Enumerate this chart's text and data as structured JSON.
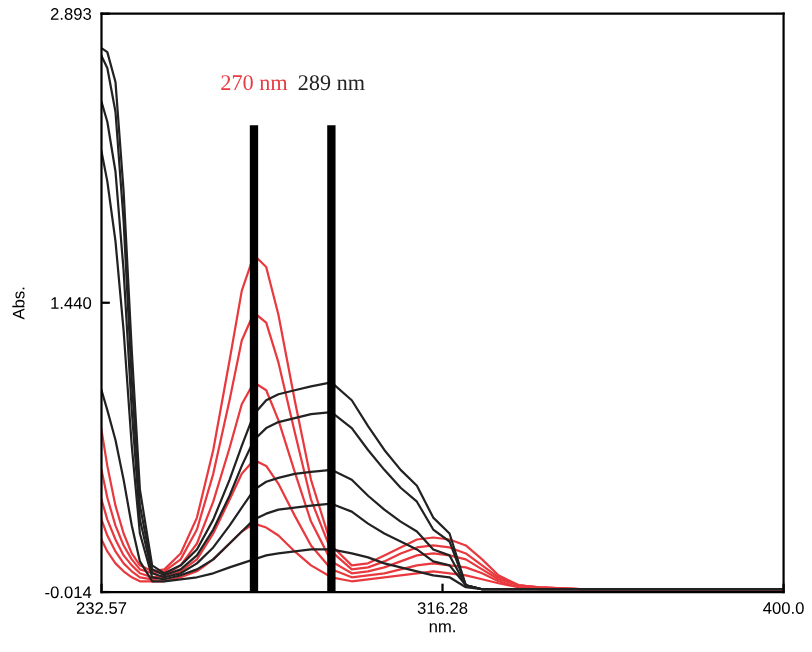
{
  "chart_data": {
    "type": "line",
    "xlabel": "nm.",
    "ylabel": "Abs.",
    "x": [
      232.57,
      234,
      236,
      238,
      240,
      242,
      245,
      248,
      252,
      256,
      260,
      264,
      267,
      270,
      273,
      276,
      280,
      284,
      289,
      294,
      298,
      302,
      306,
      310,
      314,
      318,
      322,
      326,
      330,
      335,
      340,
      350,
      370,
      400
    ],
    "xlim": [
      232.57,
      400.0
    ],
    "ylim": [
      -0.014,
      2.893
    ],
    "xticks": [
      232.57,
      {
        "value": 316.28,
        "label": "316.28"
      },
      {
        "value": 400.0,
        "label": "400.0"
      }
    ],
    "yticks": [
      -0.014,
      {
        "value": 1.44,
        "label": "1.440"
      },
      2.893
    ],
    "grid": false,
    "marker": "none",
    "line_style": "solid",
    "series": [
      {
        "color": "#e8393f",
        "values": [
          0.8,
          0.62,
          0.42,
          0.28,
          0.18,
          0.12,
          0.09,
          0.1,
          0.18,
          0.36,
          0.7,
          1.15,
          1.5,
          1.68,
          1.62,
          1.38,
          0.95,
          0.55,
          0.22,
          0.12,
          0.13,
          0.17,
          0.21,
          0.25,
          0.26,
          0.25,
          0.22,
          0.15,
          0.07,
          0.02,
          0.01,
          0.0,
          0.0,
          0.0
        ]
      },
      {
        "color": "#e8393f",
        "values": [
          0.6,
          0.46,
          0.32,
          0.22,
          0.15,
          0.1,
          0.08,
          0.09,
          0.15,
          0.3,
          0.58,
          0.95,
          1.25,
          1.39,
          1.34,
          1.14,
          0.79,
          0.45,
          0.19,
          0.1,
          0.11,
          0.14,
          0.18,
          0.21,
          0.22,
          0.21,
          0.18,
          0.12,
          0.06,
          0.02,
          0.01,
          0.0,
          0.0,
          0.0
        ]
      },
      {
        "color": "#e8393f",
        "values": [
          0.45,
          0.35,
          0.25,
          0.17,
          0.12,
          0.08,
          0.06,
          0.07,
          0.12,
          0.23,
          0.44,
          0.71,
          0.93,
          1.04,
          1.0,
          0.85,
          0.59,
          0.34,
          0.14,
          0.08,
          0.09,
          0.11,
          0.14,
          0.17,
          0.18,
          0.17,
          0.15,
          0.1,
          0.05,
          0.02,
          0.01,
          0.0,
          0.0,
          0.0
        ]
      },
      {
        "color": "#e8393f",
        "values": [
          0.35,
          0.27,
          0.19,
          0.13,
          0.09,
          0.06,
          0.05,
          0.06,
          0.09,
          0.15,
          0.28,
          0.45,
          0.58,
          0.65,
          0.62,
          0.53,
          0.37,
          0.22,
          0.1,
          0.06,
          0.07,
          0.08,
          0.1,
          0.12,
          0.13,
          0.12,
          0.11,
          0.08,
          0.04,
          0.01,
          0.0,
          0.0,
          0.0,
          0.0
        ]
      },
      {
        "color": "#e8393f",
        "values": [
          0.25,
          0.19,
          0.13,
          0.09,
          0.06,
          0.04,
          0.04,
          0.04,
          0.06,
          0.09,
          0.15,
          0.23,
          0.29,
          0.33,
          0.31,
          0.27,
          0.19,
          0.12,
          0.06,
          0.04,
          0.05,
          0.06,
          0.07,
          0.08,
          0.09,
          0.08,
          0.07,
          0.05,
          0.03,
          0.01,
          0.0,
          0.0,
          0.0,
          0.0
        ]
      },
      {
        "color": "#222222",
        "values": [
          2.72,
          2.7,
          2.55,
          2.0,
          1.2,
          0.5,
          0.12,
          0.08,
          0.12,
          0.2,
          0.35,
          0.55,
          0.72,
          0.88,
          0.95,
          0.98,
          1.0,
          1.02,
          1.04,
          0.95,
          0.82,
          0.7,
          0.6,
          0.52,
          0.36,
          0.28,
          0.02,
          0.0,
          0.0,
          0.0,
          0.0,
          0.0,
          0.0,
          0.0
        ]
      },
      {
        "color": "#222222",
        "values": [
          2.68,
          2.62,
          2.4,
          1.85,
          1.05,
          0.42,
          0.1,
          0.07,
          0.1,
          0.17,
          0.3,
          0.47,
          0.62,
          0.75,
          0.81,
          0.84,
          0.86,
          0.88,
          0.89,
          0.81,
          0.7,
          0.6,
          0.51,
          0.44,
          0.3,
          0.24,
          0.02,
          0.0,
          0.0,
          0.0,
          0.0,
          0.0,
          0.0,
          0.0
        ]
      },
      {
        "color": "#222222",
        "values": [
          2.45,
          2.35,
          2.1,
          1.6,
          0.9,
          0.35,
          0.08,
          0.06,
          0.08,
          0.13,
          0.21,
          0.32,
          0.41,
          0.5,
          0.54,
          0.56,
          0.58,
          0.59,
          0.6,
          0.55,
          0.47,
          0.4,
          0.34,
          0.29,
          0.2,
          0.17,
          0.02,
          0.0,
          0.0,
          0.0,
          0.0,
          0.0,
          0.0,
          0.0
        ]
      },
      {
        "color": "#222222",
        "values": [
          2.2,
          2.05,
          1.75,
          1.3,
          0.72,
          0.28,
          0.06,
          0.05,
          0.07,
          0.1,
          0.15,
          0.23,
          0.29,
          0.35,
          0.38,
          0.4,
          0.41,
          0.42,
          0.43,
          0.39,
          0.33,
          0.28,
          0.24,
          0.2,
          0.14,
          0.12,
          0.02,
          0.0,
          0.0,
          0.0,
          0.0,
          0.0,
          0.0,
          0.0
        ]
      },
      {
        "color": "#222222",
        "values": [
          1.0,
          0.9,
          0.75,
          0.55,
          0.32,
          0.14,
          0.04,
          0.04,
          0.05,
          0.06,
          0.08,
          0.11,
          0.13,
          0.15,
          0.17,
          0.18,
          0.19,
          0.2,
          0.2,
          0.18,
          0.16,
          0.13,
          0.11,
          0.09,
          0.07,
          0.06,
          0.01,
          0.0,
          0.0,
          0.0,
          0.0,
          0.0,
          0.0,
          0.0
        ]
      }
    ],
    "ref_lines": [
      {
        "axis": "x",
        "value": 270,
        "label": "270 nm",
        "color": "#000000"
      },
      {
        "axis": "x",
        "value": 289,
        "label": "289 nm",
        "color": "#000000"
      }
    ]
  }
}
